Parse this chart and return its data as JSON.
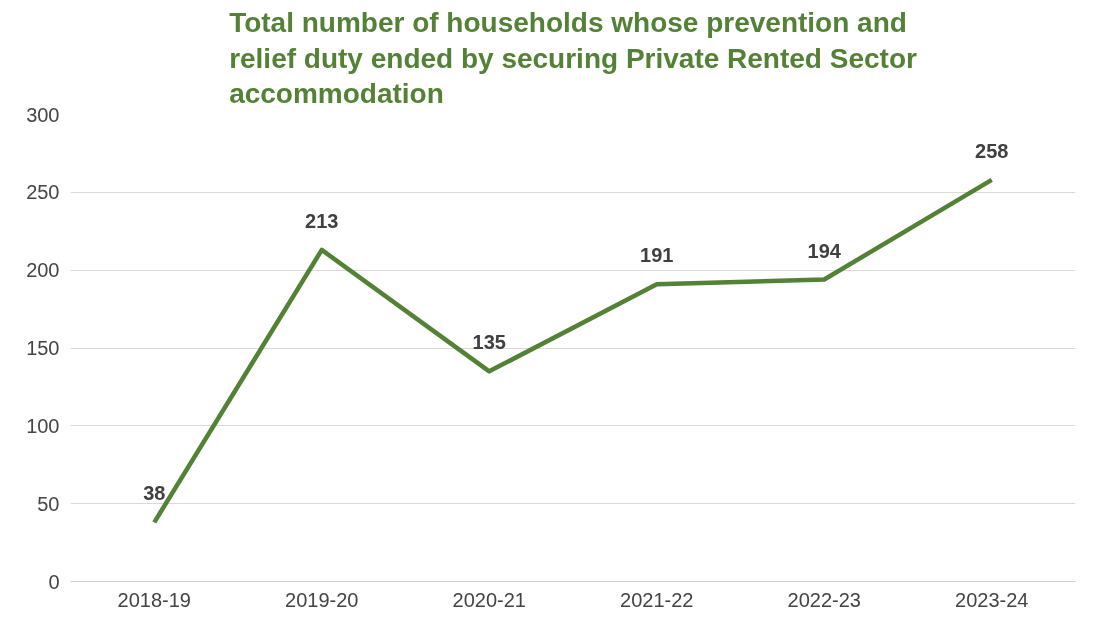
{
  "chart_data": {
    "type": "line",
    "title": "Total number of households whose prevention and relief duty ended by securing Private Rented Sector accommodation",
    "categories": [
      "2018-19",
      "2019-20",
      "2020-21",
      "2021-22",
      "2022-23",
      "2023-24"
    ],
    "series": [
      {
        "color": "#538135",
        "values": [
          38,
          213,
          135,
          191,
          194,
          258
        ]
      }
    ],
    "ylim": [
      0,
      300
    ],
    "yticks": [
      0,
      50,
      100,
      150,
      200,
      250,
      300
    ],
    "grid": "y",
    "data_labels": true,
    "line_style": "solid",
    "marker": "none"
  }
}
